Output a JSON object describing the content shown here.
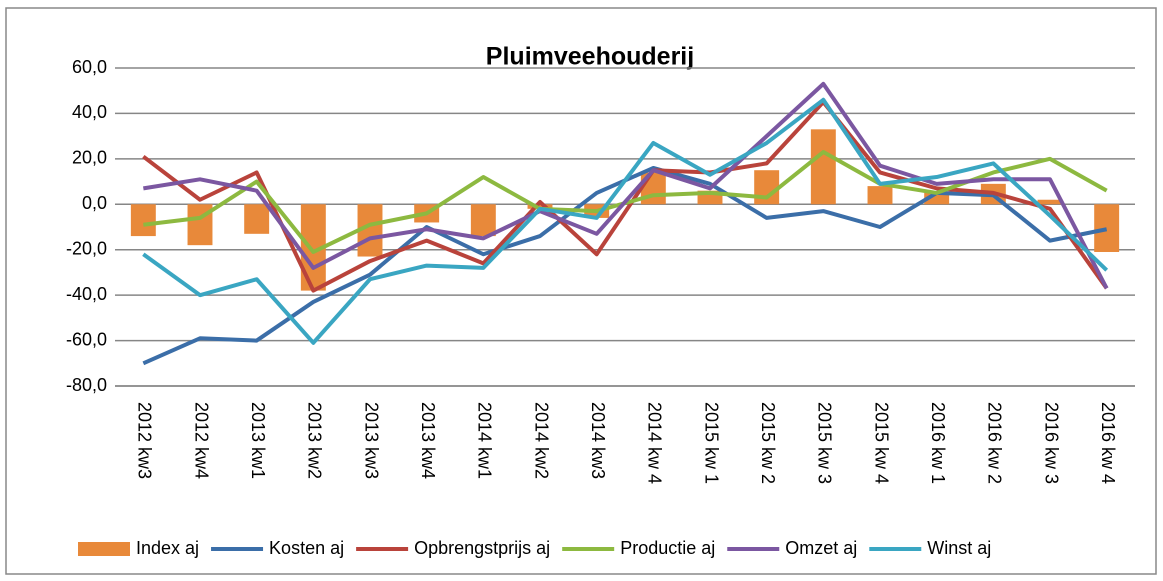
{
  "chart_data": {
    "type": "combo",
    "title": "Pluimveehouderij",
    "categories": [
      "2012 kw3",
      "2012 kw4",
      "2013 kw1",
      "2013 kw2",
      "2013 kw3",
      "2013 kw4",
      "2014 kw1",
      "2014 kw2",
      "2014 kw3",
      "2014 kw 4",
      "2015 kw 1",
      "2015 kw 2",
      "2015 kw 3",
      "2015 kw 4",
      "2016 kw 1",
      "2016 kw 2",
      "2016 kw 3",
      "2016 kw 4"
    ],
    "series": [
      {
        "name": "Index aj",
        "type": "bar",
        "color": "#e8893a",
        "values": [
          -14,
          -18,
          -13,
          -38,
          -23,
          -8,
          -14,
          -2,
          -6,
          14,
          6,
          15,
          33,
          8,
          5,
          9,
          2,
          -21
        ]
      },
      {
        "name": "Kosten aj",
        "type": "line",
        "color": "#3b6ea8",
        "values": [
          -70,
          -59,
          -60,
          -43,
          -31,
          -10,
          -22,
          -14,
          5,
          16,
          9,
          -6,
          -3,
          -10,
          5,
          4,
          -16,
          -11
        ]
      },
      {
        "name": "Opbrengstprijs aj",
        "type": "line",
        "color": "#b9433b",
        "values": [
          21,
          2,
          14,
          -38,
          -25,
          -16,
          -26,
          1,
          -22,
          15,
          14,
          18,
          45,
          14,
          7,
          5,
          -2,
          -37
        ]
      },
      {
        "name": "Productie aj",
        "type": "line",
        "color": "#8db940",
        "values": [
          -9,
          -6,
          10,
          -21,
          -9,
          -4,
          12,
          -2,
          -3,
          4,
          5,
          3,
          23,
          9,
          5,
          14,
          20,
          6
        ]
      },
      {
        "name": "Omzet aj",
        "type": "line",
        "color": "#7b57a1",
        "values": [
          7,
          11,
          6,
          -28,
          -15,
          -11,
          -15,
          -3,
          -13,
          15,
          7,
          30,
          53,
          17,
          9,
          11,
          11,
          -37
        ]
      },
      {
        "name": "Winst aj",
        "type": "line",
        "color": "#3aa6c2",
        "values": [
          -22,
          -40,
          -33,
          -61,
          -33,
          -27,
          -28,
          -2,
          -6,
          27,
          13,
          27,
          46,
          9,
          12,
          18,
          -5,
          -29
        ]
      }
    ],
    "ylim": [
      -80,
      60
    ],
    "yticks": [
      {
        "value": -80,
        "label": "-80,0"
      },
      {
        "value": -60,
        "label": "-60,0"
      },
      {
        "value": -40,
        "label": "-40,0"
      },
      {
        "value": -20,
        "label": "-20,0"
      },
      {
        "value": 0,
        "label": "0,0"
      },
      {
        "value": 20,
        "label": "20,0"
      },
      {
        "value": 40,
        "label": "40,0"
      },
      {
        "value": 60,
        "label": "60,0"
      }
    ],
    "grid": true,
    "legend": "bottom"
  }
}
